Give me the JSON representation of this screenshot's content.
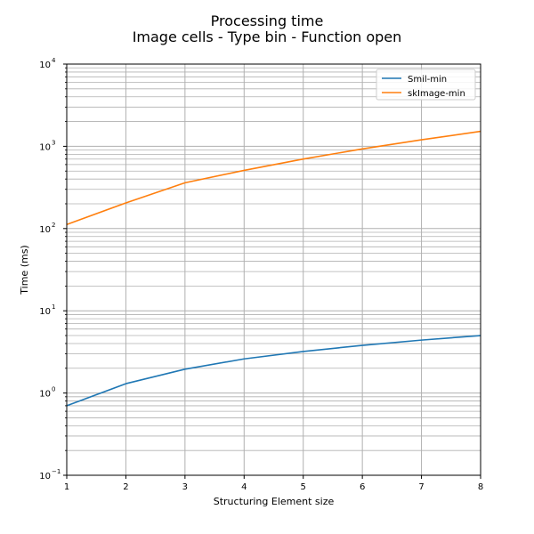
{
  "chart_data": {
    "type": "line",
    "title": [
      "Processing time",
      "Image cells - Type bin - Function open"
    ],
    "xlabel": "Structuring Element size",
    "ylabel": "Time (ms)",
    "x": [
      1,
      2,
      3,
      4,
      5,
      6,
      7,
      8
    ],
    "xlim": [
      1,
      8
    ],
    "ylim": [
      0.1,
      10000
    ],
    "yscale": "log",
    "grid": true,
    "legend_position": "top-right",
    "xticks": [
      "1",
      "2",
      "3",
      "4",
      "5",
      "6",
      "7",
      "8"
    ],
    "yticks": [
      {
        "base": "10",
        "exp": "−1"
      },
      {
        "base": "10",
        "exp": "0"
      },
      {
        "base": "10",
        "exp": "1"
      },
      {
        "base": "10",
        "exp": "2"
      },
      {
        "base": "10",
        "exp": "3"
      },
      {
        "base": "10",
        "exp": "4"
      }
    ],
    "series": [
      {
        "name": "Smil-min",
        "color": "#1f77b4",
        "values": [
          0.7,
          1.3,
          1.95,
          2.6,
          3.2,
          3.8,
          4.4,
          5.0
        ]
      },
      {
        "name": "skImage-min",
        "color": "#ff7f0e",
        "values": [
          112,
          205,
          360,
          510,
          700,
          930,
          1200,
          1520
        ]
      }
    ]
  }
}
